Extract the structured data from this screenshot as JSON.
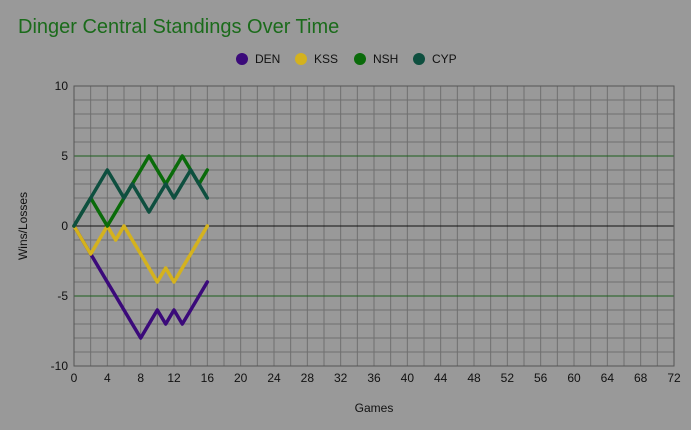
{
  "chart_data": {
    "type": "line",
    "title": "Dinger Central Standings Over Time",
    "xlabel": "Games",
    "ylabel": "Wins/Losses",
    "xlim": [
      0,
      72
    ],
    "ylim": [
      -10,
      10
    ],
    "x_ticks": [
      0,
      4,
      8,
      12,
      16,
      20,
      24,
      28,
      32,
      36,
      40,
      44,
      48,
      52,
      56,
      60,
      64,
      68,
      72
    ],
    "x_tick_labels": [
      "0",
      "4",
      "8",
      "12",
      "16",
      "20",
      "24",
      "28",
      "32",
      "36",
      "40",
      "44",
      "48",
      "52",
      "56",
      "60",
      "64",
      "68",
      "72"
    ],
    "y_ticks": [
      10,
      5,
      0,
      -5,
      -10
    ],
    "y_tick_labels": [
      "10",
      "5",
      "0",
      "-5",
      "-10"
    ],
    "grid": true,
    "legend_position": "top-center",
    "series": [
      {
        "name": "DEN",
        "color": "#3b0a7a",
        "points": [
          [
            0,
            0
          ],
          [
            1,
            -1
          ],
          [
            2,
            -2
          ],
          [
            3,
            -3
          ],
          [
            4,
            -4
          ],
          [
            5,
            -5
          ],
          [
            6,
            -6
          ],
          [
            7,
            -7
          ],
          [
            8,
            -8
          ],
          [
            9,
            -7
          ],
          [
            10,
            -6
          ],
          [
            11,
            -7
          ],
          [
            12,
            -6
          ],
          [
            13,
            -7
          ],
          [
            14,
            -6
          ],
          [
            15,
            -5
          ],
          [
            16,
            -4
          ]
        ]
      },
      {
        "name": "KSS",
        "color": "#d4b21e",
        "points": [
          [
            0,
            0
          ],
          [
            1,
            -1
          ],
          [
            2,
            -2
          ],
          [
            3,
            -1
          ],
          [
            4,
            0
          ],
          [
            5,
            -1
          ],
          [
            6,
            0
          ],
          [
            7,
            -1
          ],
          [
            8,
            -2
          ],
          [
            9,
            -3
          ],
          [
            10,
            -4
          ],
          [
            11,
            -3
          ],
          [
            12,
            -4
          ],
          [
            13,
            -3
          ],
          [
            14,
            -2
          ],
          [
            15,
            -1
          ],
          [
            16,
            0
          ]
        ]
      },
      {
        "name": "NSH",
        "color": "#0a6b0a",
        "points": [
          [
            0,
            0
          ],
          [
            1,
            1
          ],
          [
            2,
            2
          ],
          [
            3,
            1
          ],
          [
            4,
            0
          ],
          [
            5,
            1
          ],
          [
            6,
            2
          ],
          [
            7,
            3
          ],
          [
            8,
            4
          ],
          [
            9,
            5
          ],
          [
            10,
            4
          ],
          [
            11,
            3
          ],
          [
            12,
            4
          ],
          [
            13,
            5
          ],
          [
            14,
            4
          ],
          [
            15,
            3
          ],
          [
            16,
            4
          ]
        ]
      },
      {
        "name": "CYP",
        "color": "#0e4f3f",
        "points": [
          [
            0,
            0
          ],
          [
            1,
            1
          ],
          [
            2,
            2
          ],
          [
            3,
            3
          ],
          [
            4,
            4
          ],
          [
            5,
            3
          ],
          [
            6,
            2
          ],
          [
            7,
            3
          ],
          [
            8,
            2
          ],
          [
            9,
            1
          ],
          [
            10,
            2
          ],
          [
            11,
            3
          ],
          [
            12,
            2
          ],
          [
            13,
            3
          ],
          [
            14,
            4
          ],
          [
            15,
            3
          ],
          [
            16,
            2
          ]
        ]
      }
    ]
  }
}
